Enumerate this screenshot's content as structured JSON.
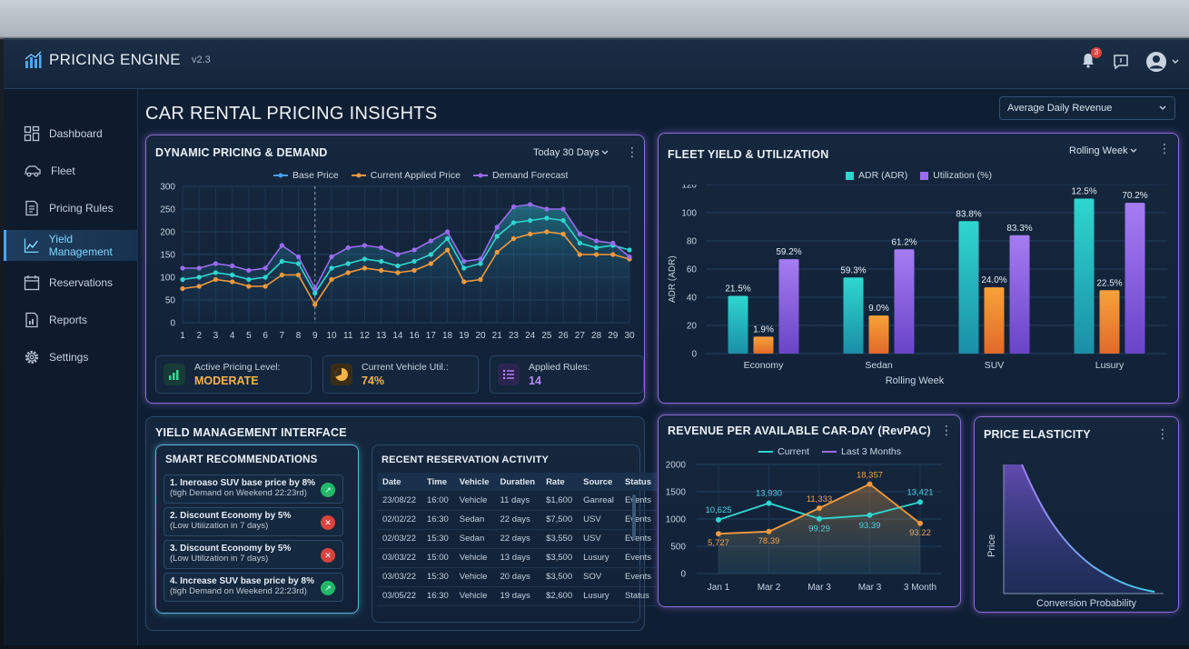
{
  "app": {
    "title": "PRICING ENGINE",
    "version": "v2.3",
    "notification_count": "3"
  },
  "sidebar": {
    "items": [
      {
        "label": "Dashboard",
        "icon": "dashboard-icon"
      },
      {
        "label": "Fleet",
        "icon": "car-icon"
      },
      {
        "label": "Pricing Rules",
        "icon": "document-icon"
      },
      {
        "label": "Yield Management",
        "icon": "line-chart-icon",
        "active": true
      },
      {
        "label": "Reservations",
        "icon": "calendar-icon"
      },
      {
        "label": "Reports",
        "icon": "report-icon"
      },
      {
        "label": "Settings",
        "icon": "gear-icon"
      }
    ]
  },
  "page": {
    "title": "CAR RENTAL PRICING INSIGHTS",
    "metric_select": "Average Daily Revenue"
  },
  "dynamic_pricing": {
    "title": "DYNAMIC PRICING & DEMAND",
    "range_select": "Today 30 Days",
    "kpis": [
      {
        "label": "Active Pricing Level:",
        "value": "MODERATE"
      },
      {
        "label": "Current Vehicle Util.:",
        "value": "74%"
      },
      {
        "label": "Applied Rules:",
        "value": "14"
      }
    ]
  },
  "fleet_yield": {
    "title": "FLEET YIELD & UTILIZATION",
    "range_select": "Rolling Week"
  },
  "yield_interface": {
    "title": "YIELD MANAGEMENT INTERFACE",
    "recommendations_title": "SMART RECOMMENDATIONS",
    "recommendations": [
      {
        "title": "1. Ineroaso SUV base price by 8%",
        "sub": "(tigh Demand on Weekend 22:23rd)",
        "type": "up"
      },
      {
        "title": "2. Discount Economy by 5%",
        "sub": "(Low Utiiization in 7 days)",
        "type": "down"
      },
      {
        "title": "3. Discount Economy by 5%",
        "sub": "(Low Utilization in 7 days)",
        "type": "down"
      },
      {
        "title": "4. Increase SUV base price by 8%",
        "sub": "(tigh Demand on Weekend 22:23rd)",
        "type": "up"
      }
    ],
    "activity_title": "RECENT RESERVATION ACTIVITY",
    "columns": [
      "Date",
      "Time",
      "Vehicle",
      "Duratlen",
      "Rate",
      "Source",
      "Status"
    ],
    "rows": [
      [
        "23/08/22",
        "16:00",
        "Vehicle",
        "11 days",
        "$1,600",
        "Ganreal",
        "Events"
      ],
      [
        "02/02/22",
        "16:30",
        "Sedan",
        "22 days",
        "$7,500",
        "USV",
        "Events"
      ],
      [
        "02/03/22",
        "15:30",
        "Sedan",
        "22 days",
        "$3,550",
        "USV",
        "Events"
      ],
      [
        "03/03/22",
        "15:00",
        "Vehicle",
        "13 days",
        "$3,500",
        "Lusury",
        "Events"
      ],
      [
        "03/03/22",
        "15:30",
        "Vehicle",
        "20 days",
        "$3,500",
        "SOV",
        "Events"
      ],
      [
        "03/05/22",
        "16:30",
        "Vehicle",
        "19 days",
        "$2,600",
        "Lusury",
        "Status"
      ]
    ]
  },
  "revpac": {
    "title": "REVENUE PER AVAILABLE CAR-DAY (RevPAC)"
  },
  "elasticity": {
    "title": "PRICE ELASTICITY"
  },
  "colors": {
    "base": "#4a9cf0",
    "current": "#f39a3c",
    "forecast": "#9a6bf0",
    "teal": "#2fd6cf",
    "accent_orange": "#f7b34a",
    "accent_purple": "#b78af5"
  },
  "chart_data": [
    {
      "id": "dynamic",
      "type": "line",
      "categories": [
        "1",
        "2",
        "3",
        "4",
        "5",
        "6",
        "7",
        "8",
        "9",
        "10",
        "11",
        "12",
        "13",
        "14",
        "16",
        "17",
        "18",
        "19",
        "20",
        "21",
        "23",
        "24",
        "25",
        "26",
        "27",
        "28",
        "29",
        "30"
      ],
      "series": [
        {
          "name": "Base Price",
          "values": [
            95,
            100,
            110,
            105,
            95,
            100,
            135,
            130,
            65,
            120,
            130,
            140,
            135,
            125,
            135,
            150,
            185,
            120,
            130,
            190,
            220,
            225,
            230,
            225,
            175,
            165,
            170,
            160
          ]
        },
        {
          "name": "Current Applied Price",
          "values": [
            75,
            80,
            95,
            90,
            80,
            80,
            105,
            105,
            40,
            95,
            110,
            120,
            115,
            110,
            115,
            130,
            160,
            90,
            95,
            155,
            185,
            195,
            200,
            195,
            150,
            150,
            150,
            140
          ]
        },
        {
          "name": "Demand Forecast",
          "values": [
            120,
            120,
            130,
            125,
            115,
            120,
            170,
            145,
            75,
            145,
            165,
            170,
            165,
            150,
            160,
            180,
            200,
            135,
            140,
            210,
            255,
            260,
            250,
            250,
            195,
            180,
            175,
            145
          ]
        }
      ],
      "ylim": [
        0,
        300
      ],
      "yticks": [
        0,
        50,
        100,
        150,
        200,
        250,
        300
      ]
    },
    {
      "id": "fleet",
      "type": "bar",
      "categories": [
        "Economy",
        "Sedan",
        "SUV",
        "Lusury"
      ],
      "series": [
        {
          "name": "ADR (ADR)",
          "values": [
            41,
            54,
            94,
            110
          ],
          "labels": [
            "21.5%",
            "59.3%",
            "83.8%",
            "12.5%"
          ]
        },
        {
          "name": "",
          "values": [
            12,
            27,
            47,
            45
          ],
          "labels": [
            "1.9%",
            "9.0%",
            "24.0%",
            "22.5%"
          ]
        },
        {
          "name": "Utilization (%)",
          "values": [
            67,
            74,
            84,
            107
          ],
          "labels": [
            "59.2%",
            "61.2%",
            "83.3%",
            "70.2%"
          ]
        }
      ],
      "xlabel": "Rolling Week",
      "ylabel": "ADR (ADR)",
      "ylim": [
        0,
        120
      ],
      "yticks": [
        0,
        20,
        40,
        60,
        80,
        100,
        120
      ]
    },
    {
      "id": "revpac",
      "type": "line",
      "categories": [
        "Jan 1",
        "Mar 2",
        "Mar 3",
        "Mar 3",
        "3 Month"
      ],
      "series": [
        {
          "name": "Current",
          "values": [
            985,
            1290,
            1005,
            1070,
            1310
          ],
          "labels": [
            "10,625",
            "13,930",
            "99.29",
            "93.39",
            "13,421"
          ]
        },
        {
          "name": "Last 3 Months",
          "values": [
            730,
            770,
            1200,
            1640,
            920
          ],
          "labels": [
            "5,727",
            "78.39",
            "11,333",
            "18,357",
            "93.22"
          ]
        }
      ],
      "ylim": [
        0,
        2000
      ],
      "yticks": [
        0,
        500,
        1000,
        1500,
        2000
      ]
    },
    {
      "id": "elasticity",
      "type": "area",
      "xlabel": "Conversion Probability",
      "ylabel": "Price"
    }
  ]
}
